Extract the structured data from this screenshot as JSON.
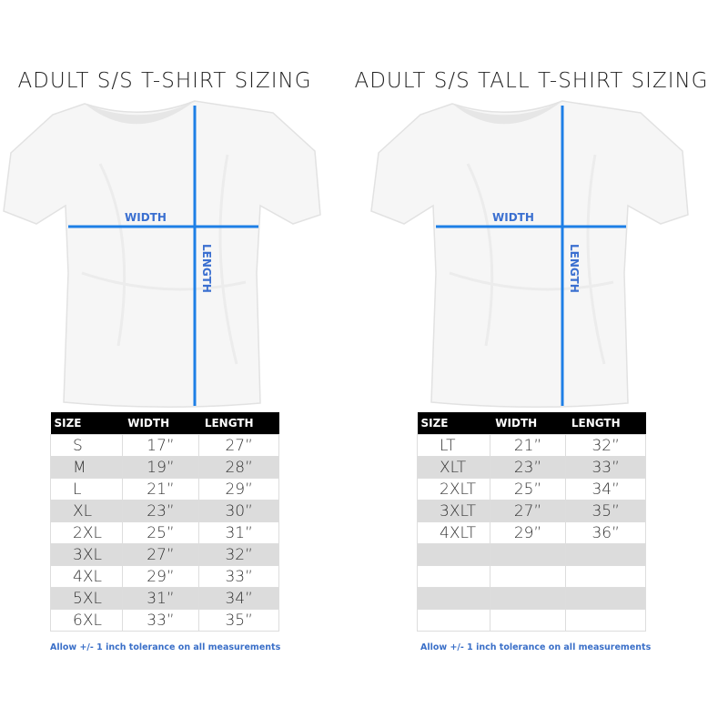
{
  "left": {
    "title": "ADULT S/S T-SHIRT SIZING",
    "width_label": "WIDTH",
    "length_label": "LENGTH",
    "headers": [
      "SIZE",
      "WIDTH",
      "LENGTH"
    ],
    "rows": [
      [
        "S",
        "17”",
        "27”"
      ],
      [
        "M",
        "19”",
        "28”"
      ],
      [
        "L",
        "21”",
        "29”"
      ],
      [
        "XL",
        "23”",
        "30”"
      ],
      [
        "2XL",
        "25”",
        "31”"
      ],
      [
        "3XL",
        "27”",
        "32”"
      ],
      [
        "4XL",
        "29”",
        "33”"
      ],
      [
        "5XL",
        "31”",
        "34”"
      ],
      [
        "6XL",
        "33”",
        "35”"
      ]
    ],
    "note": "Allow +/- 1 inch tolerance on all measurements"
  },
  "right": {
    "title": "ADULT S/S TALL T-SHIRT SIZING",
    "width_label": "WIDTH",
    "length_label": "LENGTH",
    "headers": [
      "SIZE",
      "WIDTH",
      "LENGTH"
    ],
    "rows": [
      [
        "LT",
        "21”",
        "32”"
      ],
      [
        "XLT",
        "23”",
        "33”"
      ],
      [
        "2XLT",
        "25”",
        "34”"
      ],
      [
        "3XLT",
        "27”",
        "35”"
      ],
      [
        "4XLT",
        "29”",
        "36”"
      ],
      [
        "",
        "",
        ""
      ],
      [
        "",
        "",
        ""
      ],
      [
        "",
        "",
        ""
      ],
      [
        "",
        "",
        ""
      ]
    ],
    "note": "Allow +/- 1 inch tolerance on all measurements"
  },
  "colors": {
    "measure_line": "#1e7fe6",
    "label": "#3a6fd0",
    "header_bg": "#000000",
    "stripe": "#dcdcdc"
  }
}
